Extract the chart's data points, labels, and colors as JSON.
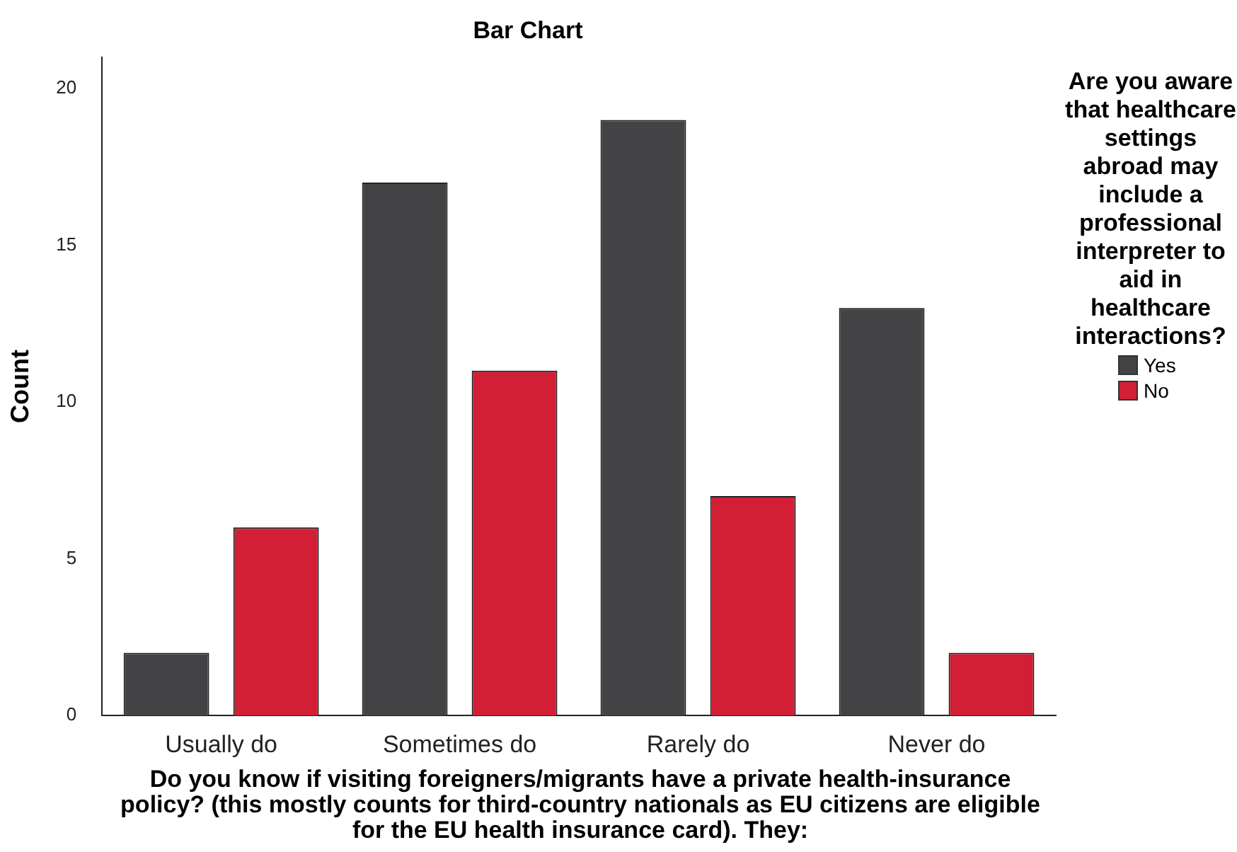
{
  "chart_data": {
    "type": "bar",
    "title": "Bar Chart",
    "xlabel": "Do you know if visiting foreigners/migrants have a private health-insurance policy? (this mostly counts for third-country nationals as EU citizens are eligible for the EU health insurance card). They:",
    "ylabel": "Count",
    "legend_title": "Are you aware that healthcare settings abroad may include a professional interpreter to aid in healthcare interactions?",
    "categories": [
      "Usually do",
      "Sometimes do",
      "Rarely do",
      "Never do"
    ],
    "series": [
      {
        "name": "Yes",
        "color": "#434345",
        "values": [
          2,
          17,
          19,
          13
        ]
      },
      {
        "name": "No",
        "color": "#d21f36",
        "values": [
          6,
          11,
          7,
          2
        ]
      }
    ],
    "ylim": [
      0,
      21
    ],
    "yticks": [
      0,
      5,
      10,
      15,
      20
    ],
    "grid": false,
    "legend": "right"
  }
}
